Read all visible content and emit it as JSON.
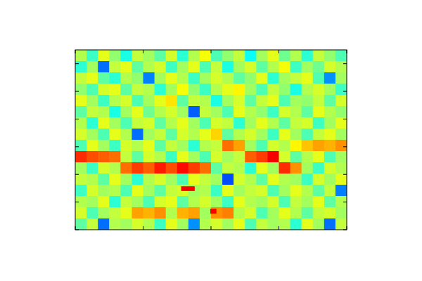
{
  "chart_data": {
    "type": "heatmap",
    "xlim": [
      0,
      4
    ],
    "ylim": [
      0,
      6.5
    ],
    "xticks": [
      0,
      1,
      2,
      3,
      4
    ],
    "yticks": [
      0,
      1,
      2,
      3,
      4,
      5,
      6
    ],
    "tick_labels": false,
    "clim": [
      -3,
      3
    ],
    "cells": [
      [
        0.3,
        -0.4,
        0.6,
        0.1,
        -0.6,
        0.4,
        0.2,
        -0.2,
        0.5,
        -0.5,
        0.3,
        0.7,
        -0.3,
        0.1,
        0.4,
        -0.7,
        0.2,
        0.6,
        -0.1,
        0.3,
        -0.5,
        0.4,
        0.1,
        -0.3
      ],
      [
        -0.5,
        0.2,
        -1.6,
        0.4,
        0.6,
        -0.2,
        0.3,
        0.5,
        -0.4,
        0.2,
        0.6,
        -0.3,
        0.4,
        -0.6,
        0.2,
        0.5,
        -0.2,
        0.3,
        0.7,
        -0.4,
        0.2,
        -0.1,
        0.5,
        0.3
      ],
      [
        0.4,
        0.6,
        -0.2,
        -0.5,
        0.3,
        0.1,
        -1.5,
        0.2,
        0.6,
        0.3,
        -0.4,
        0.2,
        0.5,
        0.3,
        -0.2,
        0.1,
        0.6,
        -0.5,
        0.2,
        0.4,
        0.6,
        -0.3,
        -1.4,
        0.2
      ],
      [
        0.1,
        -0.3,
        0.5,
        0.6,
        -0.2,
        0.4,
        0.3,
        -0.5,
        0.2,
        0.7,
        0.1,
        -0.4,
        0.3,
        0.6,
        0.8,
        0.2,
        -0.3,
        0.4,
        0.1,
        -0.6,
        0.3,
        0.5,
        0.2,
        -0.4
      ],
      [
        0.6,
        0.2,
        -0.4,
        0.3,
        0.5,
        -0.3,
        0.2,
        0.6,
        0.9,
        -0.2,
        0.4,
        0.3,
        -0.6,
        0.2,
        0.5,
        -0.2,
        0.4,
        0.6,
        -0.3,
        0.2,
        0.1,
        0.4,
        -0.2,
        0.5
      ],
      [
        -0.2,
        0.4,
        0.3,
        -0.6,
        0.2,
        0.6,
        -0.1,
        0.3,
        0.5,
        0.2,
        -1.7,
        0.4,
        0.2,
        -0.3,
        0.6,
        0.3,
        0.1,
        -0.4,
        0.5,
        0.3,
        -0.2,
        0.6,
        0.3,
        0.1
      ],
      [
        0.3,
        -0.5,
        0.6,
        0.2,
        -0.3,
        0.4,
        0.5,
        -0.2,
        0.3,
        0.6,
        0.2,
        -0.3,
        0.5,
        0.4,
        -0.5,
        0.2,
        0.6,
        0.3,
        -0.2,
        0.4,
        0.5,
        -0.4,
        0.2,
        0.6
      ],
      [
        0.5,
        0.2,
        -0.3,
        0.6,
        0.3,
        -1.6,
        0.2,
        0.4,
        -0.2,
        0.5,
        0.3,
        0.6,
        1.0,
        -0.2,
        0.3,
        0.5,
        0.2,
        -0.4,
        0.6,
        0.2,
        -0.3,
        0.4,
        0.6,
        0.2
      ],
      [
        -0.3,
        0.6,
        0.2,
        -0.4,
        0.5,
        0.3,
        0.6,
        -0.2,
        0.4,
        0.2,
        -0.5,
        0.3,
        0.4,
        1.6,
        1.3,
        0.2,
        -0.3,
        0.5,
        0.3,
        0.8,
        1.1,
        1.3,
        1.2,
        1.4
      ],
      [
        2.0,
        1.8,
        1.7,
        1.6,
        0.4,
        -0.2,
        0.5,
        0.3,
        -0.4,
        0.6,
        0.2,
        -0.3,
        0.5,
        0.2,
        0.4,
        1.7,
        1.9,
        2.3,
        0.5,
        -0.2,
        0.3,
        0.6,
        -0.3,
        0.2
      ],
      [
        0.2,
        -0.4,
        0.5,
        0.3,
        1.6,
        1.9,
        1.7,
        2.1,
        1.8,
        2.2,
        1.9,
        1.6,
        -0.2,
        0.4,
        0.3,
        -0.5,
        0.6,
        0.2,
        2.0,
        1.4,
        0.2,
        -0.4,
        0.5,
        0.3
      ],
      [
        0.4,
        0.3,
        -0.2,
        0.6,
        0.2,
        -0.5,
        0.3,
        0.5,
        0.2,
        -0.3,
        0.6,
        0.4,
        0.2,
        -1.8,
        0.5,
        0.3,
        -0.2,
        0.6,
        0.3,
        0.2,
        -0.4,
        0.5,
        0.2,
        0.6
      ],
      [
        -0.4,
        0.5,
        0.2,
        0.3,
        -0.3,
        0.6,
        0.2,
        -0.2,
        0.4,
        0.5,
        0.2,
        0.3,
        -0.4,
        0.6,
        0.2,
        0.4,
        0.5,
        -0.3,
        0.2,
        0.6,
        0.3,
        -0.2,
        0.4,
        -1.5
      ],
      [
        0.3,
        0.2,
        0.6,
        -0.5,
        0.4,
        0.2,
        -0.3,
        0.5,
        0.6,
        -0.2,
        0.3,
        0.5,
        0.2,
        -0.4,
        0.6,
        0.3,
        0.2,
        0.5,
        -0.3,
        0.4,
        0.2,
        0.6,
        -0.2,
        0.3
      ],
      [
        0.5,
        -0.3,
        0.2,
        0.4,
        0.6,
        1.3,
        1.2,
        1.4,
        0.3,
        1.2,
        1.3,
        0.2,
        1.4,
        1.5,
        0.3,
        0.5,
        -0.3,
        0.2,
        0.6,
        0.3,
        -0.2,
        0.4,
        0.5,
        0.2
      ],
      [
        -0.2,
        0.4,
        -1.6,
        0.3,
        0.2,
        0.5,
        0.3,
        -0.4,
        0.6,
        0.2,
        -1.4,
        0.3,
        0.5,
        0.2,
        0.6,
        -0.3,
        0.4,
        0.2,
        0.3,
        -0.5,
        0.6,
        0.2,
        -1.6,
        0.4
      ]
    ],
    "boxes": [
      {
        "x0": 1.56,
        "x1": 1.76,
        "y0": 1.4,
        "y1": 1.57,
        "value": 2.3
      },
      {
        "x0": 1.99,
        "x1": 2.08,
        "y0": 0.58,
        "y1": 0.76,
        "value": 2.3
      }
    ]
  }
}
